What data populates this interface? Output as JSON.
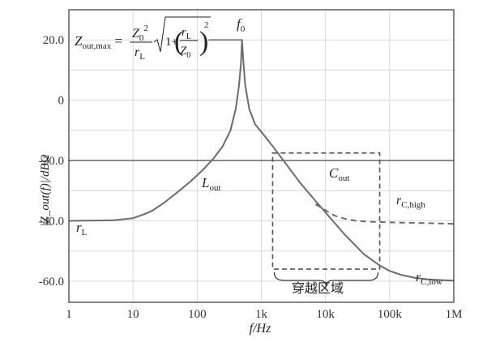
{
  "chart_data": {
    "type": "line",
    "title": "",
    "xlabel": "f/Hz",
    "ylabel": "|Z_out(f)|/dBΩ",
    "x_scale": "log",
    "xlim": [
      1,
      1000000
    ],
    "ylim": [
      -67,
      30
    ],
    "x_ticks": [
      {
        "value": 1,
        "label": "1"
      },
      {
        "value": 10,
        "label": "10"
      },
      {
        "value": 100,
        "label": "100"
      },
      {
        "value": 1000,
        "label": "1k"
      },
      {
        "value": 10000,
        "label": "10k"
      },
      {
        "value": 100000,
        "label": "100k"
      },
      {
        "value": 1000000,
        "label": "1M"
      }
    ],
    "y_ticks": [
      {
        "value": 20,
        "label": "20.0"
      },
      {
        "value": 0,
        "label": "0"
      },
      {
        "value": -20,
        "label": "-20.0"
      },
      {
        "value": -40,
        "label": "-40.0"
      },
      {
        "value": -60,
        "label": "-60.0"
      }
    ],
    "grid": true,
    "reference_line": {
      "y": -20
    },
    "series": [
      {
        "style": "solid",
        "color": "#6b6b6b",
        "x": [
          1,
          5,
          10,
          15,
          20,
          30,
          50,
          80,
          120,
          180,
          250,
          330,
          400,
          450,
          480,
          500,
          520,
          560,
          650,
          800,
          1000,
          1500,
          2500,
          4000,
          7000,
          10000,
          20000,
          40000,
          70000,
          100000,
          150000,
          250000,
          400000,
          700000,
          1000000
        ],
        "y": [
          -40,
          -39.8,
          -39.1,
          -37.8,
          -36.6,
          -34.1,
          -30.4,
          -26.8,
          -23.3,
          -19.3,
          -15.3,
          -10,
          -2.8,
          5,
          12,
          20,
          14,
          5,
          -3,
          -8,
          -10.5,
          -15.2,
          -21.5,
          -27.3,
          -33.4,
          -37.2,
          -44.6,
          -51.1,
          -54.8,
          -56.6,
          -57.9,
          -58.9,
          -59.4,
          -59.7,
          -59.8
        ]
      },
      {
        "style": "dashed",
        "color": "#6b6b6b",
        "x": [
          7000,
          10000,
          14000,
          20000,
          30000,
          50000,
          100000,
          300000,
          1000000
        ],
        "y": [
          -34.5,
          -36.5,
          -38.3,
          -39.3,
          -40,
          -40.3,
          -40.5,
          -40.7,
          -41
        ]
      }
    ],
    "f0_plateau": {
      "x": [
        150,
        500
      ],
      "y": 20
    },
    "crossover_box": {
      "x": [
        1500,
        70000
      ],
      "y": [
        -17.5,
        -56
      ]
    },
    "annotations": {
      "formula_lhs": "Z",
      "formula_lhs_sub": "out,max",
      "formula_Z0": "Z",
      "formula_Z0_sub": "0",
      "formula_sq": "2",
      "formula_rL": "r",
      "formula_rL_sub": "L",
      "formula_one": "1+",
      "f0": "f",
      "f0_sub": "0",
      "Lout": "L",
      "Lout_sub": "out",
      "Cout": "C",
      "Cout_sub": "out",
      "rL": "r",
      "rL_sub": "L",
      "rChigh": "r",
      "rChigh_sub": "C,high",
      "rClow": "r",
      "rClow_sub": "C,low",
      "region": "穿越区域"
    }
  }
}
